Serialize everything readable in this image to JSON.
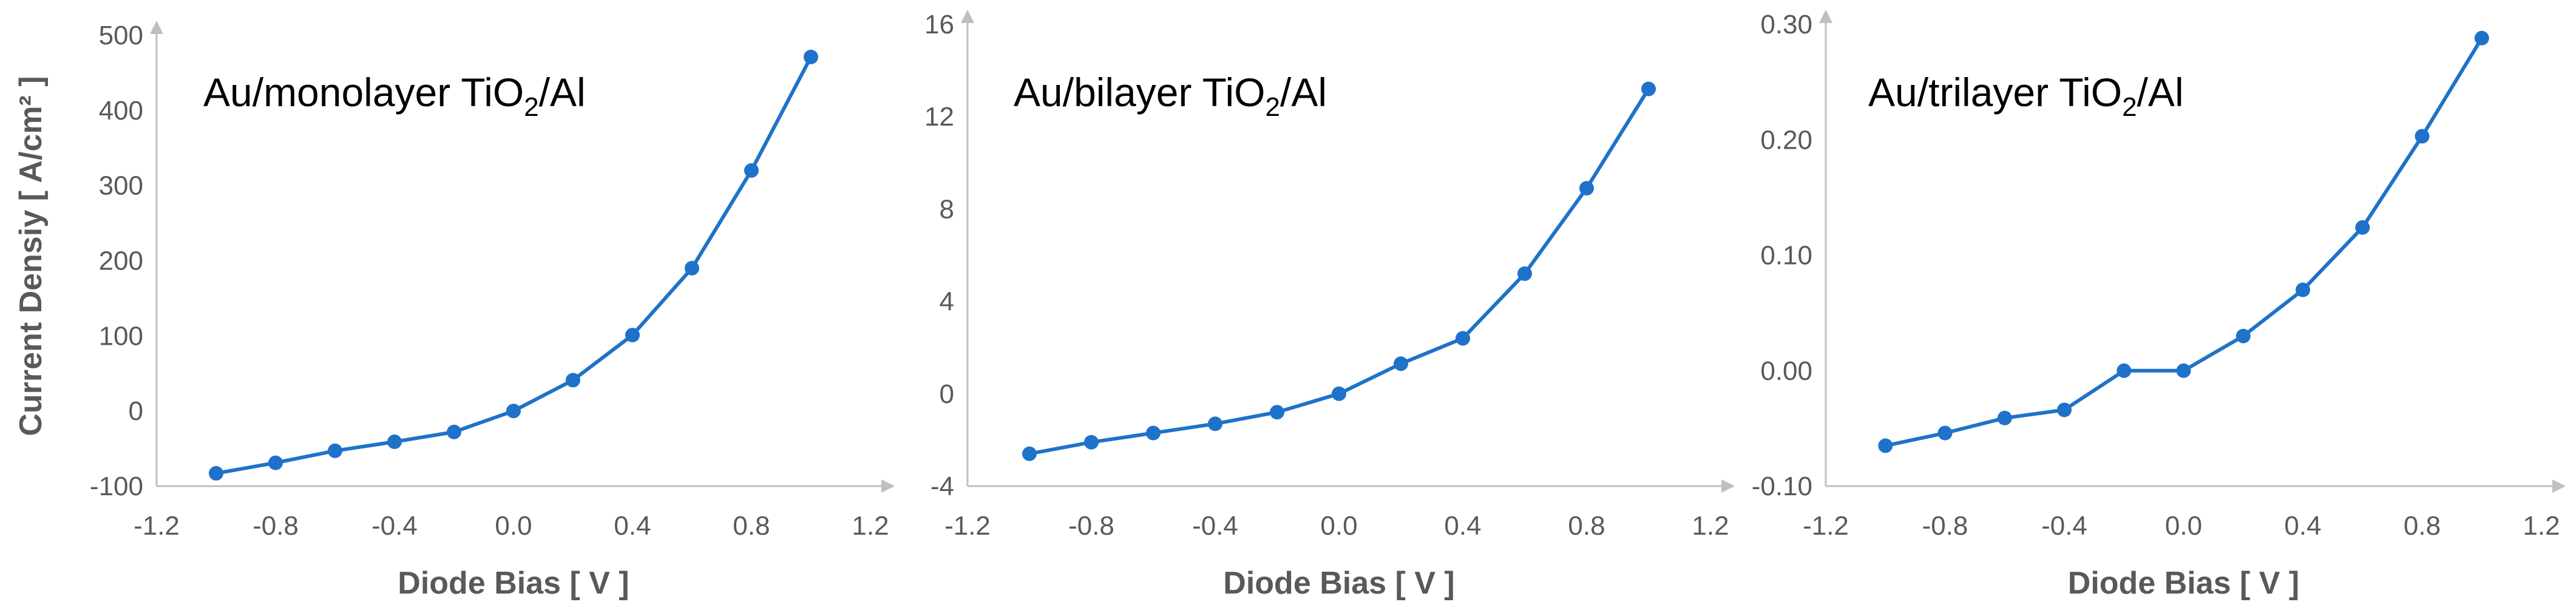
{
  "colors": {
    "series": "#1f72c9",
    "axis": "#bfbfbf",
    "tick_text": "#595959"
  },
  "shared": {
    "y_axis_title": "Current Densiy [ A/cm² ]"
  },
  "chart_data": [
    {
      "type": "line",
      "title": {
        "prefix": "Au/monolayer TiO",
        "sub": "2",
        "suffix": "/Al"
      },
      "xlabel": "Diode Bias [ V ]",
      "xlim": [
        -1.2,
        1.2
      ],
      "ylim": [
        -100,
        500
      ],
      "x_ticks": [
        "-1.2",
        "-0.8",
        "-0.4",
        "0.0",
        "0.4",
        "0.8",
        "1.2"
      ],
      "y_ticks": [
        "-100",
        "0",
        "100",
        "200",
        "300",
        "400",
        "500"
      ],
      "grid": false,
      "series": [
        {
          "x": [
            -1.0,
            -0.8,
            -0.6,
            -0.4,
            -0.2,
            0.0,
            0.2,
            0.4,
            0.6,
            0.8,
            1.0
          ],
          "y": [
            -83,
            -69,
            -53,
            -41,
            -28,
            0,
            41,
            101,
            190,
            320,
            471
          ]
        }
      ]
    },
    {
      "type": "line",
      "title": {
        "prefix": "Au/bilayer TiO",
        "sub": "2",
        "suffix": "/Al"
      },
      "xlabel": "Diode Bias [ V ]",
      "xlim": [
        -1.2,
        1.2
      ],
      "ylim": [
        -4,
        16
      ],
      "x_ticks": [
        "-1.2",
        "-0.8",
        "-0.4",
        "0.0",
        "0.4",
        "0.8",
        "1.2"
      ],
      "y_ticks": [
        "-4",
        "0",
        "4",
        "8",
        "12",
        "16"
      ],
      "grid": false,
      "series": [
        {
          "x": [
            -1.0,
            -0.8,
            -0.6,
            -0.4,
            -0.2,
            0.0,
            0.2,
            0.4,
            0.6,
            0.8,
            1.0
          ],
          "y": [
            -2.6,
            -2.1,
            -1.7,
            -1.3,
            -0.8,
            0.0,
            1.3,
            2.4,
            5.2,
            8.9,
            13.2
          ]
        }
      ]
    },
    {
      "type": "line",
      "title": {
        "prefix": "Au/trilayer TiO",
        "sub": "2",
        "suffix": "/Al"
      },
      "xlabel": "Diode Bias [ V ]",
      "xlim": [
        -1.2,
        1.2
      ],
      "ylim": [
        -0.1,
        0.3
      ],
      "x_ticks": [
        "-1.2",
        "-0.8",
        "-0.4",
        "0.0",
        "0.4",
        "0.8",
        "1.2"
      ],
      "y_ticks": [
        "-0.10",
        "0.00",
        "0.10",
        "0.20",
        "0.30"
      ],
      "grid": false,
      "series": [
        {
          "x": [
            -1.0,
            -0.8,
            -0.6,
            -0.4,
            -0.2,
            0.0,
            0.2,
            0.4,
            0.6,
            0.8,
            1.0
          ],
          "y": [
            -0.065,
            -0.054,
            -0.041,
            -0.034,
            0.0,
            0.0,
            0.03,
            0.07,
            0.124,
            0.203,
            0.288
          ]
        }
      ]
    }
  ]
}
